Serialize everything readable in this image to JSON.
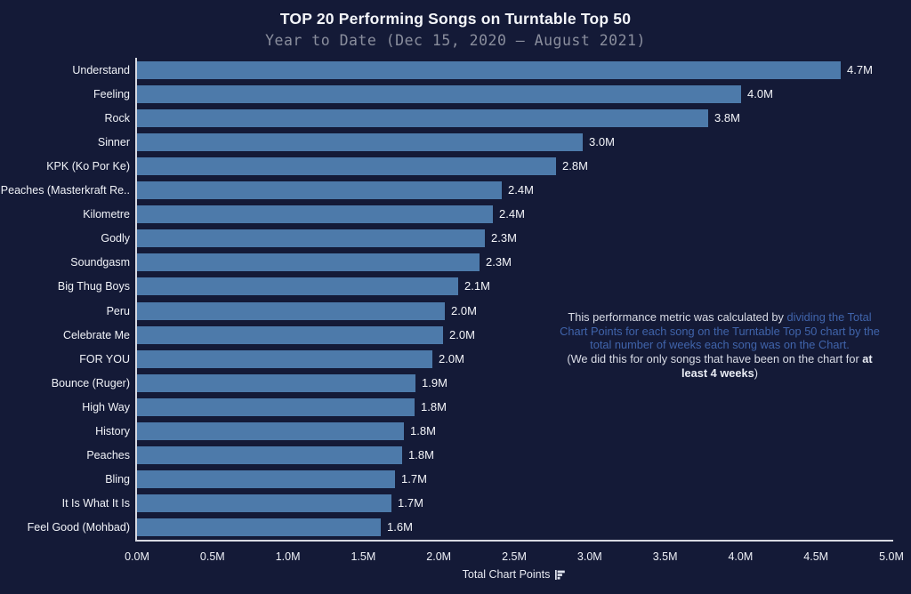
{
  "header": {
    "title": "TOP 20 Performing Songs on Turntable Top 50",
    "subtitle": "Year to Date (Dec 15, 2020 — August 2021)"
  },
  "chart_data": {
    "type": "bar",
    "orientation": "horizontal",
    "title": "TOP 20 Performing Songs on Turntable Top 50",
    "subtitle": "Year to Date (Dec 15, 2020 — August 2021)",
    "xlabel": "Total Chart Points",
    "ylabel": "",
    "xlim_millions": [
      0,
      5
    ],
    "grid": false,
    "legend": false,
    "categories": [
      "Understand",
      "Feeling",
      "Rock",
      "Sinner",
      "KPK (Ko Por Ke)",
      "Peaches (Masterkraft Re..",
      "Kilometre",
      "Godly",
      "Soundgasm",
      "Big Thug Boys",
      "Peru",
      "Celebrate Me",
      "FOR YOU",
      "Bounce (Ruger)",
      "High Way",
      "History",
      "Peaches",
      "Bling",
      "It Is What It Is",
      "Feel Good (Mohbad)"
    ],
    "values_millions": [
      4.67,
      4.01,
      3.79,
      2.96,
      2.78,
      2.42,
      2.36,
      2.31,
      2.27,
      2.13,
      2.04,
      2.03,
      1.96,
      1.85,
      1.84,
      1.77,
      1.76,
      1.71,
      1.69,
      1.62
    ],
    "value_labels": [
      "4.7M",
      "4.0M",
      "3.8M",
      "3.0M",
      "2.8M",
      "2.4M",
      "2.4M",
      "2.3M",
      "2.3M",
      "2.1M",
      "2.0M",
      "2.0M",
      "2.0M",
      "1.9M",
      "1.8M",
      "1.8M",
      "1.8M",
      "1.7M",
      "1.7M",
      "1.6M"
    ],
    "xticks": [
      "0.0M",
      "0.5M",
      "1.0M",
      "1.5M",
      "2.0M",
      "2.5M",
      "3.0M",
      "3.5M",
      "4.0M",
      "4.5M",
      "5.0M"
    ]
  },
  "annotation": {
    "sentence1_plain": "This performance metric was calculated by ",
    "sentence1_highlight": "dividing the Total Chart Points for each song on the Turntable Top 50 chart by the total number of weeks each song was on the Chart.",
    "sentence2_plain": "(We did this for only songs that have been on the chart for ",
    "sentence2_bold": "at least 4 weeks",
    "sentence2_close": ")"
  },
  "icons": {
    "x_axis_icon": "horizontal-bar-chart-icon"
  },
  "colors": {
    "background": "#141a37",
    "bar": "#4d7aaa",
    "axis_line": "#d7d9e1",
    "accent_blue_text": "#4064ab",
    "subtitle_gray": "#8a8e9d"
  }
}
